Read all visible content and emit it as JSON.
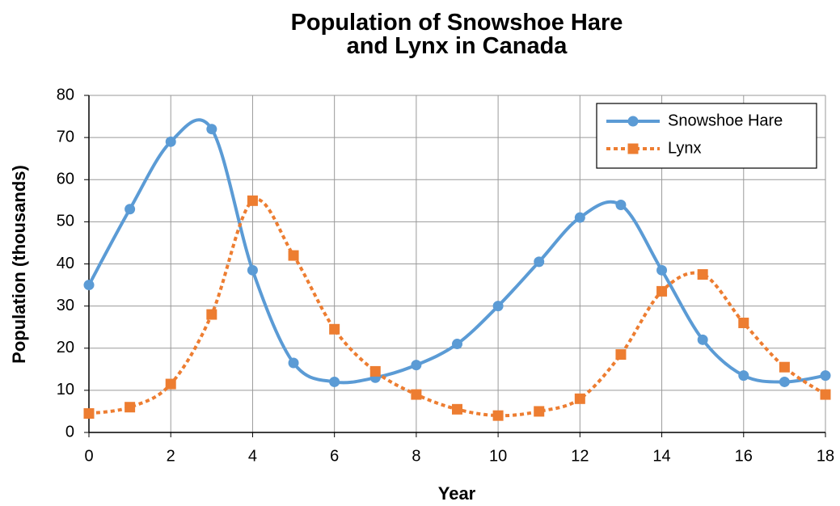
{
  "chart_data": {
    "type": "line",
    "title": "Population of Snowshoe Hare and Lynx in Canada",
    "x_label": "Year",
    "y_label": "Population (thousands)",
    "x": [
      0,
      1,
      2,
      3,
      4,
      5,
      6,
      7,
      8,
      9,
      10,
      11,
      12,
      13,
      14,
      15,
      16,
      17,
      18
    ],
    "series": [
      {
        "name": "Snowshoe Hare",
        "color": "#5b9bd5",
        "marker": "circle",
        "dash": "solid",
        "values": [
          35,
          53,
          69,
          72,
          38.5,
          16.5,
          12,
          13,
          16,
          21,
          30,
          40.5,
          51,
          54,
          38.5,
          22,
          13.5,
          12,
          13.5
        ]
      },
      {
        "name": "Lynx",
        "color": "#ed7d31",
        "marker": "square",
        "dash": "dotted",
        "values": [
          4.5,
          6,
          11.5,
          28,
          55,
          42,
          24.5,
          14.5,
          9,
          5.5,
          4,
          5,
          8,
          18.5,
          33.5,
          37.5,
          26,
          15.5,
          9
        ]
      }
    ],
    "xlim": [
      0,
      18
    ],
    "xticks": [
      0,
      2,
      4,
      6,
      8,
      10,
      12,
      14,
      16,
      18
    ],
    "ylim": [
      0,
      80
    ],
    "yticks": [
      0,
      10,
      20,
      30,
      40,
      50,
      60,
      70,
      80
    ],
    "grid": true,
    "smooth": true,
    "legend": "upper right"
  }
}
